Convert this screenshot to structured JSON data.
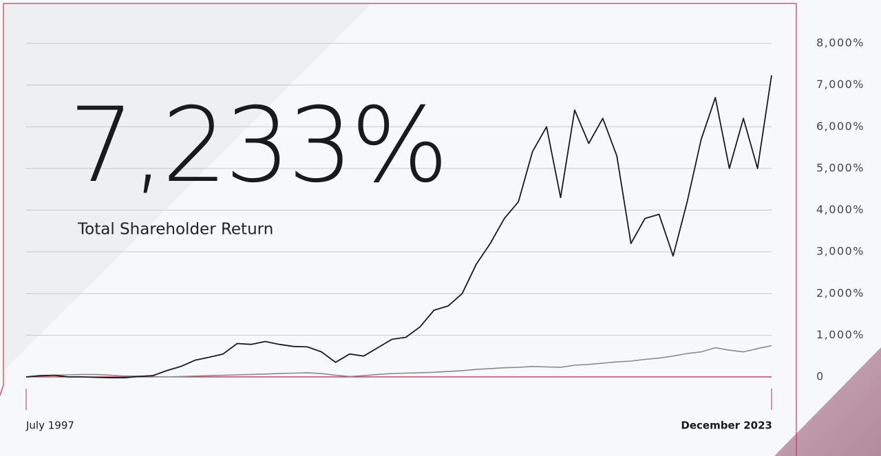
{
  "chart_data": {
    "type": "line",
    "headline": "7,233%",
    "subtitle": "Total Shareholder Return",
    "categories": [
      "July 1997",
      null,
      null,
      null,
      null,
      null,
      null,
      null,
      null,
      null,
      null,
      null,
      null,
      null,
      null,
      null,
      null,
      null,
      null,
      null,
      null,
      null,
      null,
      null,
      null,
      null,
      null,
      null,
      null,
      null,
      null,
      null,
      null,
      null,
      null,
      null,
      null,
      null,
      null,
      null,
      null,
      null,
      null,
      null,
      null,
      null,
      null,
      null,
      null,
      null,
      null,
      null,
      null,
      "December 2023"
    ],
    "series": [
      {
        "color": "#1a1a1a",
        "values": [
          0,
          30,
          40,
          0,
          0,
          -10,
          -20,
          -20,
          10,
          30,
          150,
          250,
          400,
          470,
          550,
          800,
          780,
          850,
          780,
          730,
          720,
          600,
          350,
          550,
          500,
          700,
          900,
          950,
          1200,
          1600,
          1700,
          2000,
          2700,
          3200,
          3800,
          4200,
          5400,
          6000,
          4300,
          6400,
          5600,
          6200,
          5300,
          3200,
          3800,
          3900,
          2900,
          4200,
          5700,
          6700,
          5000,
          6200,
          5000,
          7233
        ]
      },
      {
        "color": "#8a8a8a",
        "values": [
          0,
          20,
          40,
          50,
          60,
          60,
          40,
          20,
          20,
          10,
          0,
          10,
          20,
          30,
          40,
          50,
          60,
          70,
          80,
          90,
          100,
          80,
          40,
          10,
          30,
          60,
          80,
          90,
          100,
          110,
          130,
          150,
          180,
          200,
          220,
          230,
          250,
          240,
          230,
          280,
          300,
          330,
          360,
          380,
          420,
          450,
          500,
          560,
          600,
          700,
          640,
          600,
          680,
          750
        ]
      }
    ],
    "ylim": [
      0,
      8000
    ],
    "yticks": [
      0,
      {
        "value": 1000,
        "label": "1,000%"
      },
      {
        "value": 2000,
        "label": "2,000%"
      },
      {
        "value": 3000,
        "label": "3,000%"
      },
      {
        "value": 4000,
        "label": "4,000%"
      },
      {
        "value": 5000,
        "label": "5,000%"
      },
      {
        "value": 6000,
        "label": "6,000%"
      },
      {
        "value": 7000,
        "label": "7,000%"
      },
      {
        "value": 8000,
        "label": "8,000%"
      }
    ],
    "grid": true
  }
}
